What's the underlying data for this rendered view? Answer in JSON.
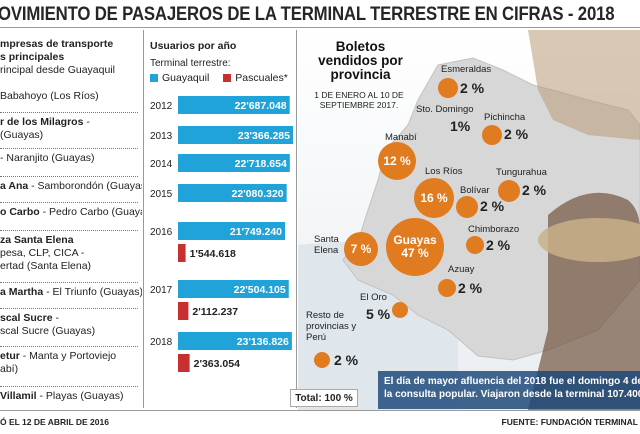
{
  "header": {
    "title": "OVIMIENTO DE PASAJEROS DE LA TERMINAL TERRESTRE EN CIFRAS - 2018"
  },
  "routes": {
    "heading_bold": "mpresas de transporte",
    "heading_bold2": "s principales",
    "heading_sub": "rincipal desde Guayaquil",
    "items": [
      {
        "bold": "",
        "text": "Babahoyo (Los Ríos)"
      },
      {
        "bold": "r de los Milagros",
        "text": " -",
        "line2": "(Guayas)"
      },
      {
        "bold": "",
        "text": "- Naranjito (Guayas)"
      },
      {
        "bold": "a Ana",
        "text": " - Samborondón (Guayas)"
      },
      {
        "bold": "o Carbo",
        "text": " - Pedro Carbo (Guayas)"
      },
      {
        "bold": "za Santa Elena",
        "text": "",
        "line2": "pesa, CLP, CICA -",
        "line3": "ertad (Santa Elena)"
      },
      {
        "bold": "a Martha",
        "text": " - El Triunfo (Guayas)"
      },
      {
        "bold": "scal Sucre",
        "text": " -",
        "line2": "scal Sucre (Guayas)"
      },
      {
        "bold": "etur",
        "text": " - Manta y Portoviejo",
        "line2": "abí)"
      },
      {
        "bold": "Villamil",
        "text": " - Playas (Guayas)"
      }
    ]
  },
  "mid": {
    "heading": "Usuarios por año",
    "subheading": "Terminal terrestre:",
    "legend": [
      {
        "label": "Guayaquil",
        "color": "#1fa3d9"
      },
      {
        "label": "Pascuales*",
        "color": "#c8302f"
      }
    ]
  },
  "chart_data": {
    "type": "bar",
    "orientation": "horizontal",
    "categories": [
      "2012",
      "2013",
      "2014",
      "2015",
      "2016",
      "2017",
      "2018"
    ],
    "series": [
      {
        "name": "Guayaquil",
        "color": "#1fa3d9",
        "values": [
          22687048,
          23366285,
          22718654,
          22080320,
          21749240,
          22504105,
          23136826
        ],
        "labels": [
          "22'687.048",
          "23'366.285",
          "22'718.654",
          "22'080.320",
          "21'749.240",
          "22'504.105",
          "23'136.826"
        ]
      },
      {
        "name": "Pascuales*",
        "color": "#c8302f",
        "values": [
          null,
          null,
          null,
          null,
          1544618,
          2112237,
          2363054
        ],
        "labels": [
          "",
          "",
          "",
          "",
          "1'544.618",
          "2'112.237",
          "2'363.054"
        ]
      }
    ],
    "xlim": [
      0,
      23366285
    ]
  },
  "map": {
    "title": "Boletos vendidos por provincia",
    "date": "1 DE ENERO AL 10 DE SEPTIEMBRE 2017.",
    "provinces": [
      {
        "name": "Esmeraldas",
        "pct": "2 %"
      },
      {
        "name": "Sto. Domingo",
        "pct": "1%"
      },
      {
        "name": "Pichincha",
        "pct": "2 %"
      },
      {
        "name": "Manabí",
        "pct": "12 %"
      },
      {
        "name": "Los Ríos",
        "pct": "16 %"
      },
      {
        "name": "Tungurahua",
        "pct": "2 %"
      },
      {
        "name": "Bolívar",
        "pct": "2 %"
      },
      {
        "name": "Santa Elena",
        "pct": "7 %"
      },
      {
        "name": "Guayas",
        "pct": "47 %"
      },
      {
        "name": "Chimborazo",
        "pct": "2 %"
      },
      {
        "name": "Azuay",
        "pct": "2 %"
      },
      {
        "name": "El Oro",
        "pct": "5 %"
      },
      {
        "name": "Resto de provincias y Perú",
        "pct": "2 %"
      }
    ],
    "total": "Total: 100 %",
    "bubble_color": "#e07b1f"
  },
  "caption": {
    "line1": "El día de mayor afluencia del 2018 fue el domingo 4 de fe",
    "line2": "la consulta popular. Viajaron desde la terminal 107.400 pe"
  },
  "footer": {
    "left": "Ó EL 12 DE ABRIL DE 2016",
    "right": "FUENTE: FUNDACIÓN TERMINAL"
  }
}
